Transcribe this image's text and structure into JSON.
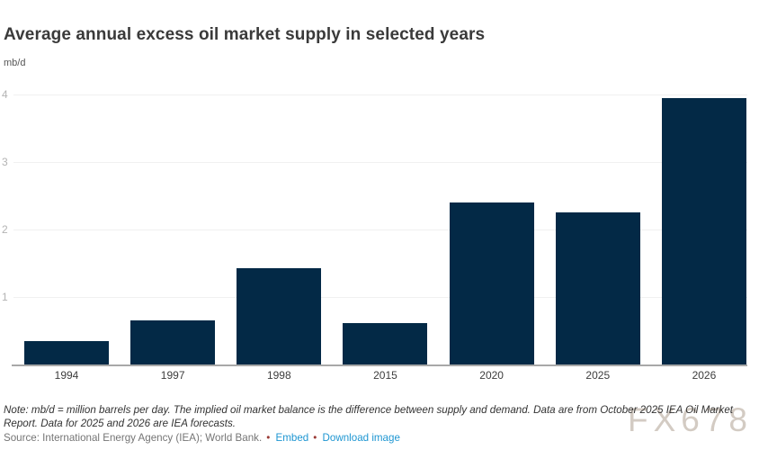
{
  "header": {
    "title": "Average annual excess oil market supply in selected years",
    "unit": "mb/d"
  },
  "chart_data": {
    "type": "bar",
    "title": "Average annual excess oil market supply in selected years",
    "xlabel": "",
    "ylabel": "mb/d",
    "categories": [
      "1994",
      "1997",
      "1998",
      "2015",
      "2020",
      "2025",
      "2026"
    ],
    "values": [
      0.35,
      0.65,
      1.43,
      0.62,
      2.4,
      2.25,
      3.95
    ],
    "ylim": [
      0,
      4.2
    ],
    "yticks": [
      1,
      2,
      3,
      4
    ],
    "grid": true,
    "legend": false,
    "bar_color": "#032946",
    "gridline_color": "#f0f0f0",
    "axis_line_color": "#a8a8a8"
  },
  "footer": {
    "note": "Note: mb/d = million barrels per day. The implied oil market balance is the difference between supply and demand. Data are from October 2025 IEA Oil Market Report. Data for 2025 and 2026 are IEA forecasts.",
    "source": "Source: International Energy Agency (IEA); World Bank.",
    "bullet": "•",
    "embed_label": "Embed",
    "download_label": "Download image",
    "link_color": "#1e96d2"
  },
  "watermark": "FX678"
}
